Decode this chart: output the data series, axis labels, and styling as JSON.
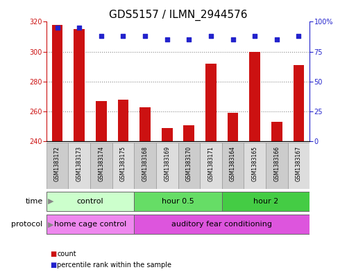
{
  "title": "GDS5157 / ILMN_2944576",
  "samples": [
    "GSM1383172",
    "GSM1383173",
    "GSM1383174",
    "GSM1383175",
    "GSM1383168",
    "GSM1383169",
    "GSM1383170",
    "GSM1383171",
    "GSM1383164",
    "GSM1383165",
    "GSM1383166",
    "GSM1383167"
  ],
  "counts": [
    318,
    315,
    267,
    268,
    263,
    249,
    251,
    292,
    259,
    300,
    253,
    291
  ],
  "percentiles": [
    95,
    95,
    88,
    88,
    88,
    85,
    85,
    88,
    85,
    88,
    85,
    88
  ],
  "ylim_left": [
    240,
    320
  ],
  "ylim_right": [
    0,
    100
  ],
  "yticks_left": [
    240,
    260,
    280,
    300,
    320
  ],
  "yticks_right": [
    0,
    25,
    50,
    75,
    100
  ],
  "time_groups": [
    {
      "label": "control",
      "start": 0,
      "end": 4,
      "color": "#ccffcc"
    },
    {
      "label": "hour 0.5",
      "start": 4,
      "end": 8,
      "color": "#66dd66"
    },
    {
      "label": "hour 2",
      "start": 8,
      "end": 12,
      "color": "#44cc44"
    }
  ],
  "protocol_groups": [
    {
      "label": "home cage control",
      "start": 0,
      "end": 4,
      "color": "#ee88ee"
    },
    {
      "label": "auditory fear conditioning",
      "start": 4,
      "end": 12,
      "color": "#dd55dd"
    }
  ],
  "bar_color": "#cc1111",
  "dot_color": "#2222cc",
  "bar_width": 0.5,
  "grid_color": "#888888",
  "background_color": "#ffffff",
  "title_fontsize": 11,
  "tick_fontsize": 7,
  "label_fontsize": 9,
  "sample_box_colors": [
    "#cccccc",
    "#dddddd"
  ]
}
